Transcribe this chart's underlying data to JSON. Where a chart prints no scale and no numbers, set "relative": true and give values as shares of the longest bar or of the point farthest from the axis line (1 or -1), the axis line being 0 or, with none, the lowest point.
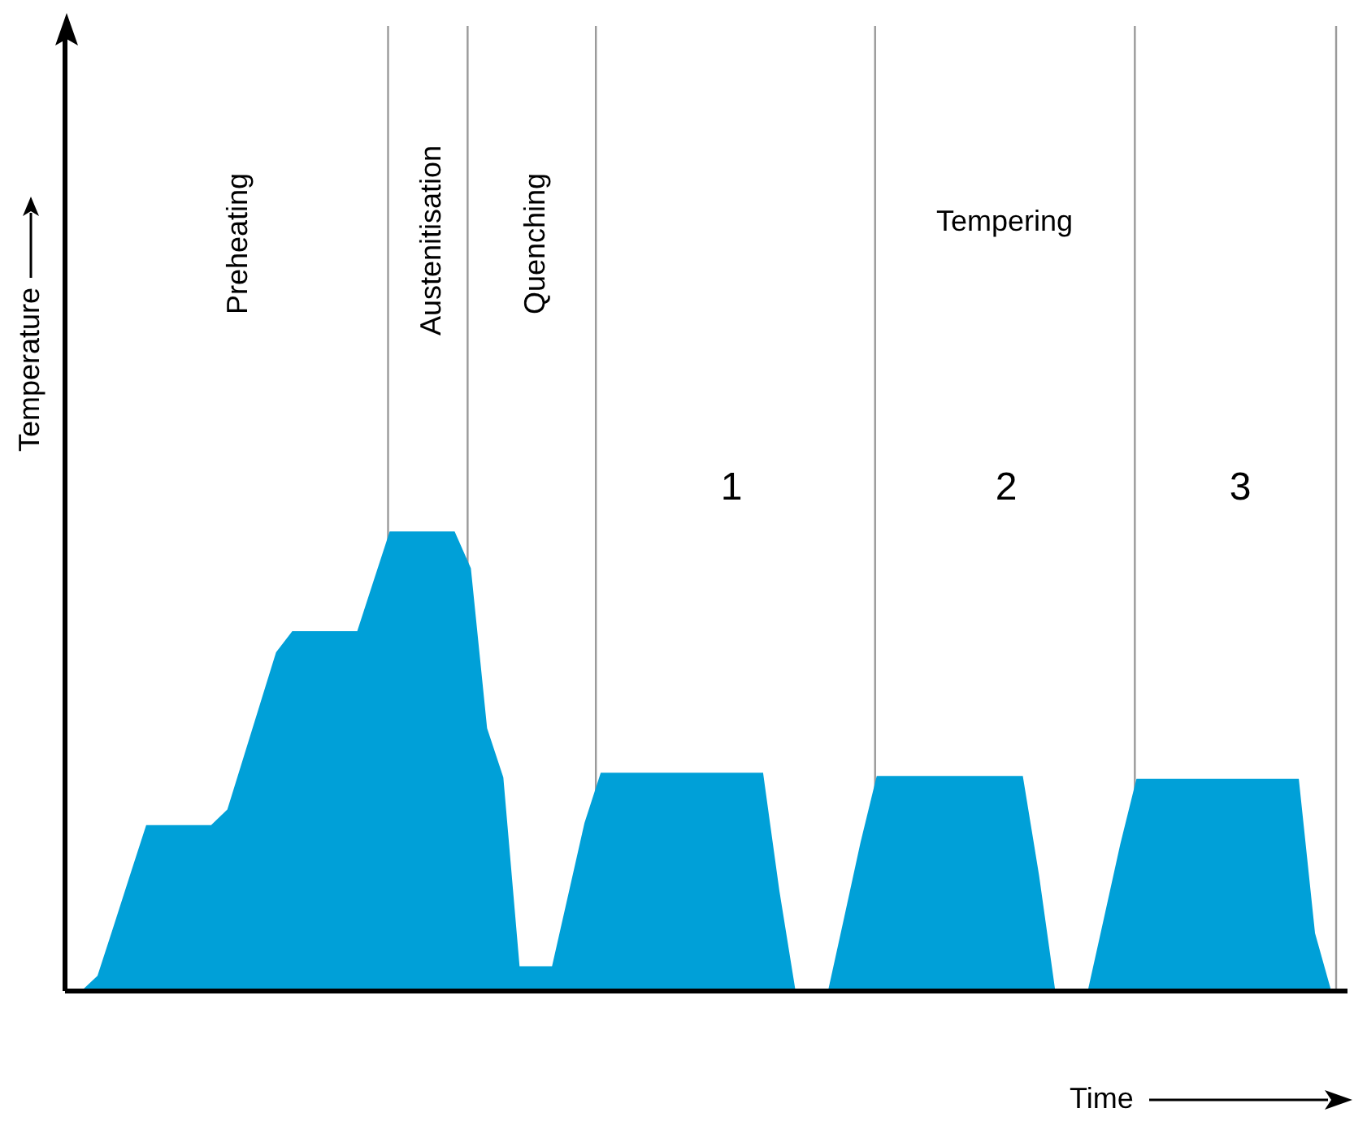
{
  "chart_data": {
    "type": "area",
    "relative": true,
    "xlabel": "Time",
    "ylabel": "Temperature",
    "color": "#00a0d8",
    "grid": "x",
    "legend": false,
    "categories": [
      null,
      null,
      null,
      null,
      null,
      null,
      null,
      null,
      null,
      null,
      null,
      null,
      null,
      null,
      null,
      null,
      null,
      null,
      null,
      null,
      null,
      null,
      null,
      null,
      null,
      null,
      null,
      null,
      null,
      null,
      null,
      null,
      null,
      null,
      null,
      null,
      null,
      null,
      null,
      null,
      null,
      null,
      null,
      null,
      null,
      null,
      null,
      null,
      null,
      null,
      null,
      null,
      null,
      null,
      null,
      null,
      null,
      null,
      null,
      null,
      null,
      null,
      null,
      null,
      null,
      null,
      null,
      null,
      null,
      null,
      null,
      null,
      null,
      null,
      null,
      null,
      null,
      null,
      null,
      null
    ],
    "values": [
      null,
      0,
      0.033,
      0.142,
      0.252,
      0.361,
      0.361,
      0.361,
      0.361,
      0.361,
      0.395,
      0.509,
      0.623,
      0.737,
      0.783,
      0.783,
      0.783,
      0.783,
      0.783,
      0.892,
      1,
      1,
      1,
      1,
      1,
      0.92,
      0.572,
      0.465,
      0.054,
      0.054,
      0.054,
      0.21,
      0.366,
      0.475,
      0.475,
      0.475,
      0.475,
      0.475,
      0.475,
      0.475,
      0.475,
      0.475,
      0.475,
      0.475,
      0.219,
      0,
      0,
      0,
      0.161,
      0.323,
      0.468,
      0.468,
      0.468,
      0.468,
      0.468,
      0.468,
      0.468,
      0.468,
      0.468,
      0.468,
      0.252,
      0,
      0,
      0,
      0.159,
      0.319,
      0.462,
      0.462,
      0.462,
      0.462,
      0.462,
      0.462,
      0.462,
      0.462,
      0.462,
      0.462,
      0.462,
      0.126,
      0,
      null
    ],
    "annotations": [
      "Preheating",
      "Austenitisation",
      "Quenching",
      "Tempering",
      "1",
      "2",
      "3"
    ]
  }
}
